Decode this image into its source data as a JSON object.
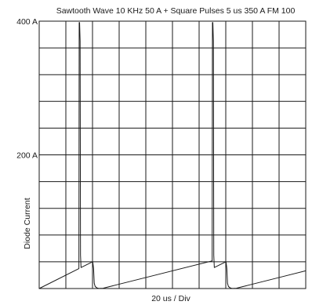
{
  "chart_data": {
    "type": "line",
    "title": "Sawtooth Wave 10 KHz 50 A + Square Pulses 5 us 350 A   FM 100",
    "xlabel": "20 us / Div",
    "ylabel": "Diode Current",
    "ytick_labels": [
      "400 A",
      "200 A"
    ],
    "ytick_values": [
      400,
      200
    ],
    "xlim": [
      0,
      200
    ],
    "ylim": [
      0,
      400
    ],
    "grid": true,
    "x_divisions": 10,
    "y_divisions": 10,
    "series": [
      {
        "x": [
          0,
          29.8,
          30,
          30.3,
          30.7,
          31,
          31.4,
          40,
          40.2,
          40.8,
          41.3,
          42,
          43.5,
          45,
          48,
          50,
          52,
          55,
          58,
          80,
          129.8,
          130,
          130.3,
          130.7,
          131,
          131.4,
          140,
          140.2,
          140.8,
          141.3,
          142,
          143.5,
          145,
          148,
          150,
          152,
          155,
          158,
          180,
          200
        ],
        "y": [
          0,
          29.9,
          398,
          398,
          370,
          50,
          31.4,
          40,
          40,
          30,
          8,
          3,
          0.8,
          0.2,
          0.5,
          1.5,
          2.5,
          4,
          5.5,
          16.5,
          41.4,
          398,
          398,
          370,
          50,
          31.4,
          40,
          40,
          30,
          8,
          3,
          0.8,
          0.2,
          0.5,
          1.5,
          2.5,
          4,
          5.5,
          16.5,
          26.5
        ]
      }
    ],
    "colors": {
      "line": "#1a1a1a",
      "grid": "#1a1a1a",
      "background": "#ffffff"
    }
  }
}
